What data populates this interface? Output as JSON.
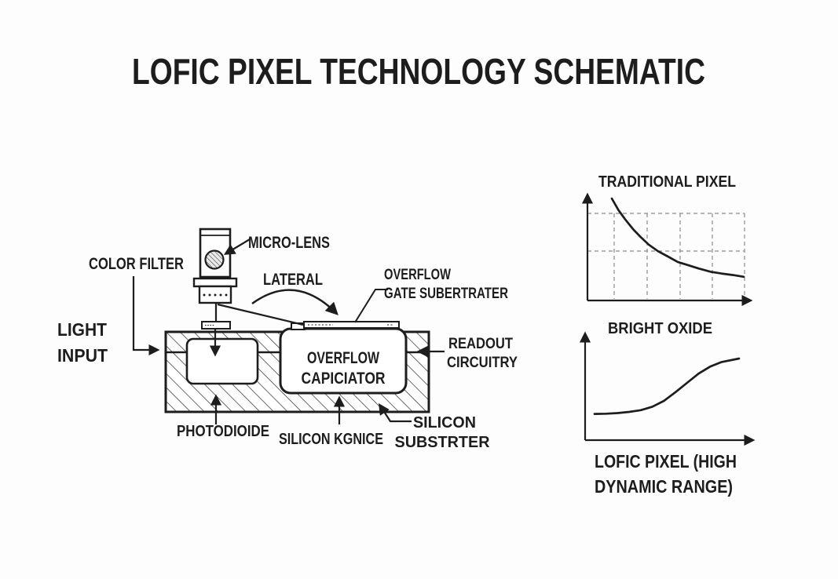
{
  "title": "LOFIC PIXEL TECHNOLOGY SCHEMATIC",
  "colors": {
    "ink": "#1d1d1d",
    "background": "#fdfdfd",
    "grid_dash": "#8c8c8c",
    "substrate_fill": "#ffffff"
  },
  "schematic": {
    "light_input": {
      "line1": "LIGHT",
      "line2": "INPUT"
    },
    "color_filter": "COLOR FILTER",
    "micro_lens": "MICRO-LENS",
    "lateral": "LATERAL",
    "overflow_gate": {
      "line1": "OVERFLOW",
      "line2": "GATE SUBERTRATER"
    },
    "overflow_capacitor": {
      "line1": "OVERFLOW",
      "line2": "CAPICIATOR"
    },
    "readout": {
      "line1": "READOUT",
      "line2": "CIRCUITRY"
    },
    "photodiode": "PHOTODIOIDE",
    "silicon_device": "SILICON KGNICE",
    "silicon_substrate": {
      "line1": "SILICON",
      "line2": "SUBSTRTER"
    }
  },
  "chart_data": [
    {
      "type": "line",
      "title": "TRADITIONAL PIXEL",
      "xlabel": "",
      "ylabel": "",
      "grid": "dashed",
      "legend": "none",
      "x": [
        0,
        0.05,
        0.1,
        0.16,
        0.22,
        0.28,
        0.35,
        0.42,
        0.5,
        0.58,
        0.66,
        0.75,
        0.83,
        0.92,
        1
      ],
      "y": [
        1,
        0.86,
        0.75,
        0.63,
        0.53,
        0.44,
        0.36,
        0.3,
        0.23,
        0.19,
        0.15,
        0.11,
        0.09,
        0.07,
        0.05
      ]
    },
    {
      "type": "line",
      "title": "BRIGHT OXIDE",
      "caption": {
        "line1": "LOFIC PIXEL (HIGH",
        "line2": "DYNAMIC RANGE)"
      },
      "xlabel": "",
      "ylabel": "",
      "grid": "off",
      "legend": "none",
      "x": [
        0,
        0.08,
        0.16,
        0.24,
        0.32,
        0.4,
        0.48,
        0.56,
        0.64,
        0.72,
        0.8,
        0.88,
        1
      ],
      "y": [
        0.005,
        0.01,
        0.02,
        0.04,
        0.07,
        0.13,
        0.23,
        0.38,
        0.54,
        0.7,
        0.82,
        0.9,
        0.96
      ]
    }
  ]
}
